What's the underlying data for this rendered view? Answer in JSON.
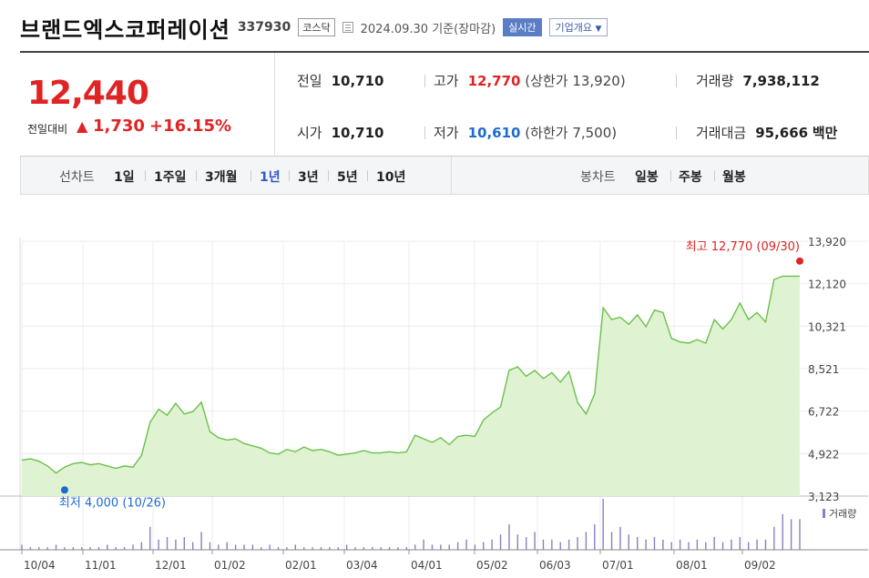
{
  "header": {
    "company": "브랜드엑스코퍼레이션",
    "code": "337930",
    "market": "코스닥",
    "date_text": "2024.09.30 기준(장마감)",
    "realtime": "실시간",
    "company_info": "기업개요"
  },
  "quote": {
    "price": "12,440",
    "change_label": "전일대비",
    "change_symbol": "▲",
    "change_value": "1,730",
    "change_pct": "+16.15%",
    "prev_label": "전일",
    "prev": "10,710",
    "open_label": "시가",
    "open": "10,710",
    "high_label": "고가",
    "high": "12,770",
    "upper_label": "(상한가",
    "upper": "13,920",
    "upper_close": ")",
    "low_label": "저가",
    "low": "10,610",
    "lower_label": "(하한가",
    "lower": "7,500",
    "lower_close": ")",
    "volume_label": "거래량",
    "volume": "7,938,112",
    "amount_label": "거래대금",
    "amount": "95,666",
    "amount_unit": "백만"
  },
  "periods": {
    "line_label": "선차트",
    "line_items": [
      "1일",
      "1주일",
      "3개월",
      "1년",
      "3년",
      "5년",
      "10년"
    ],
    "active": "1년",
    "candle_label": "봉차트",
    "candle_items": [
      "일봉",
      "주봉",
      "월봉"
    ]
  },
  "colors": {
    "up": "#e02424",
    "down": "#1d6bd1",
    "line": "#6cc04a",
    "fill": "#dff3d2",
    "active": "#2e5bc7"
  },
  "chart_data": {
    "type": "area",
    "title": "",
    "xlabel": "",
    "ylabel": "",
    "ylim": [
      3123,
      13920
    ],
    "y_ticks": [
      "13,920",
      "12,120",
      "10,321",
      "8,521",
      "6,722",
      "4,922",
      "3,123"
    ],
    "x_ticks": [
      "10/04",
      "11/01",
      "12/01",
      "01/02",
      "02/01",
      "03/04",
      "04/01",
      "05/02",
      "06/03",
      "07/01",
      "08/01",
      "09/02"
    ],
    "grid": true,
    "high_annotation": "최고 12,770 (09/30)",
    "low_annotation": "최저 4,000 (10/26)",
    "volume_label": "거래량",
    "series": [
      {
        "x": [
          0,
          4,
          8,
          12,
          16,
          20,
          24,
          28,
          32,
          36,
          40,
          44,
          48,
          52,
          56,
          60,
          64,
          68,
          72,
          76,
          80,
          84,
          88,
          92,
          96,
          100,
          104,
          108,
          112,
          116,
          120,
          124,
          128,
          132,
          136,
          140,
          144,
          148,
          152,
          156,
          160,
          164,
          168,
          172,
          176,
          180,
          184,
          188,
          192,
          196,
          200,
          204,
          208,
          212,
          216,
          220,
          224,
          228,
          232,
          236,
          240,
          244,
          248,
          252,
          256,
          260,
          264,
          268,
          272,
          276,
          280,
          284,
          288,
          292,
          296,
          300,
          304,
          308,
          312,
          316,
          320,
          324,
          328,
          332,
          336,
          340,
          344,
          348,
          352,
          356,
          360,
          364
        ],
        "values": [
          4650,
          4700,
          4600,
          4400,
          4100,
          4350,
          4500,
          4550,
          4450,
          4500,
          4400,
          4300,
          4400,
          4350,
          4850,
          6250,
          6800,
          6550,
          7050,
          6600,
          6700,
          7100,
          5850,
          5600,
          5500,
          5550,
          5350,
          5250,
          5150,
          4950,
          4900,
          5100,
          5000,
          5200,
          5050,
          5100,
          5000,
          4850,
          4900,
          4950,
          5050,
          4950,
          4950,
          5000,
          4950,
          5000,
          5700,
          5550,
          5400,
          5600,
          5300,
          5650,
          5700,
          5650,
          6350,
          6650,
          6900,
          8450,
          8600,
          8200,
          8450,
          8100,
          8350,
          7950,
          8400,
          7100,
          6600,
          7450,
          11100,
          10600,
          10700,
          10400,
          10800,
          10300,
          11000,
          10900,
          9800,
          9650,
          9600,
          9750,
          9600,
          10600,
          10200,
          10600,
          11300,
          10600,
          10900,
          10500,
          12300,
          12440,
          12440,
          12440
        ]
      }
    ],
    "volume_values": [
      2,
      1,
      1,
      1,
      2,
      1,
      1,
      1,
      1,
      1,
      2,
      1,
      1,
      2,
      3,
      9,
      4,
      5,
      4,
      5,
      3,
      7,
      3,
      2,
      3,
      2,
      2,
      2,
      1,
      2,
      1,
      1,
      2,
      1,
      1,
      1,
      1,
      1,
      2,
      1,
      1,
      1,
      1,
      1,
      1,
      1,
      2,
      4,
      2,
      2,
      2,
      3,
      4,
      2,
      3,
      4,
      6,
      10,
      6,
      5,
      7,
      4,
      4,
      3,
      4,
      5,
      7,
      10,
      20,
      7,
      9,
      6,
      5,
      4,
      5,
      4,
      3,
      4,
      3,
      4,
      3,
      5,
      3,
      4,
      5,
      3,
      4,
      4,
      9,
      14,
      12,
      12
    ]
  }
}
